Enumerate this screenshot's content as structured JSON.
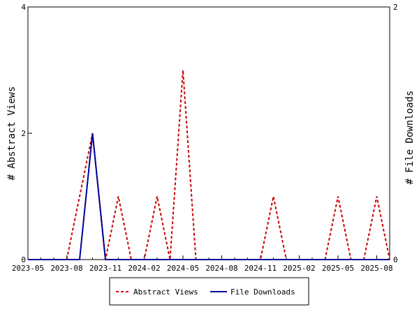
{
  "chart_data": {
    "type": "line",
    "x_tick_labels": [
      "2023-05",
      "2023-08",
      "2023-11",
      "2024-02",
      "2024-05",
      "2024-08",
      "2024-11",
      "2025-02",
      "2025-05",
      "2025-08"
    ],
    "x_months": [
      "2023-05",
      "2023-06",
      "2023-07",
      "2023-08",
      "2023-09",
      "2023-10",
      "2023-11",
      "2023-12",
      "2024-01",
      "2024-02",
      "2024-03",
      "2024-04",
      "2024-05",
      "2024-06",
      "2024-07",
      "2024-08",
      "2024-09",
      "2024-10",
      "2024-11",
      "2024-12",
      "2025-01",
      "2025-02",
      "2025-03",
      "2025-04",
      "2025-05",
      "2025-06",
      "2025-07",
      "2025-08",
      "2025-09"
    ],
    "y_left": {
      "label": "# Abstract Views",
      "range": [
        0,
        4
      ],
      "ticks": [
        0,
        2,
        4
      ]
    },
    "y_right": {
      "label": "# File Downloads",
      "range": [
        0,
        2
      ],
      "ticks": [
        0,
        2
      ]
    },
    "series": [
      {
        "name": "Abstract Views",
        "axis": "left",
        "color": "#cc0000",
        "dash": true,
        "values": [
          0,
          0,
          0,
          0,
          1,
          2,
          0,
          1,
          0,
          0,
          1,
          0,
          3,
          0,
          0,
          0,
          0,
          0,
          0,
          1,
          0,
          0,
          0,
          0,
          1,
          0,
          0,
          1,
          0
        ]
      },
      {
        "name": "File Downloads",
        "axis": "right",
        "color": "#000099",
        "dash": false,
        "values": [
          0,
          0,
          0,
          0,
          0,
          1,
          0,
          0,
          0,
          0,
          0,
          0,
          0,
          0,
          0,
          0,
          0,
          0,
          0,
          0,
          0,
          0,
          0,
          0,
          0,
          0,
          0,
          0,
          0
        ]
      }
    ],
    "legend_position": "bottom"
  }
}
